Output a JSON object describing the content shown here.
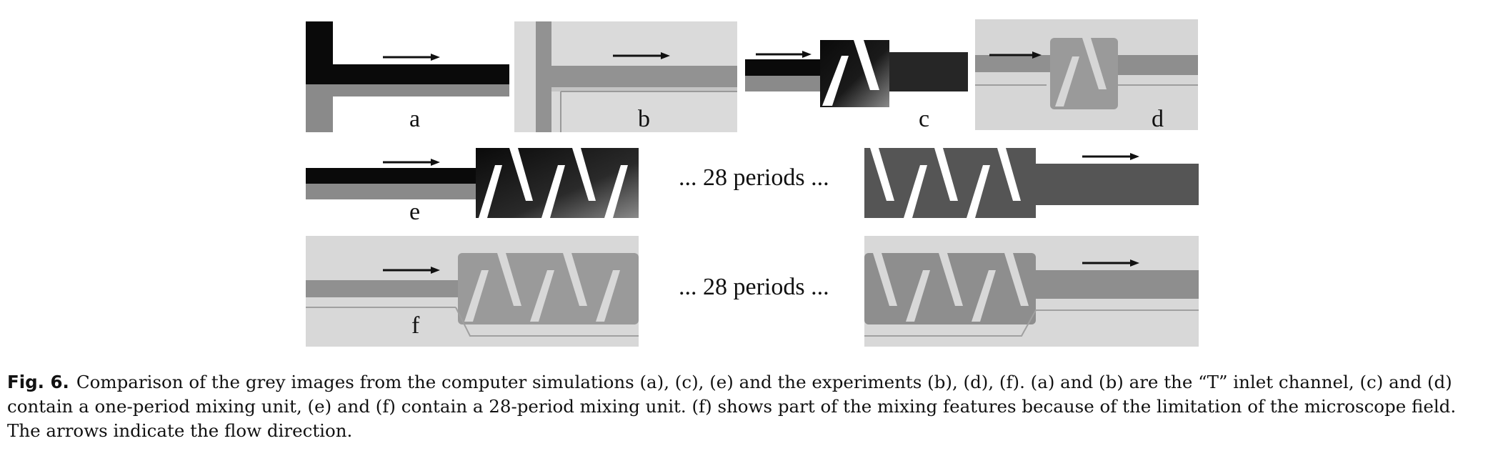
{
  "panels": {
    "a": {
      "label": "a"
    },
    "b": {
      "label": "b"
    },
    "c": {
      "label": "c"
    },
    "d": {
      "label": "d"
    },
    "e": {
      "label": "e"
    },
    "f": {
      "label": "f"
    }
  },
  "periods_text_row1": "... 28 periods ...",
  "periods_text_row2": "... 28 periods ...",
  "caption": {
    "label": "Fig. 6.",
    "text": "Comparison of the grey images from the computer simulations (a), (c), (e) and the experiments (b), (d), (f). (a) and (b) are the “T” inlet channel, (c) and (d) contain a one-period mixing unit, (e) and (f) contain a 28-period mixing unit. (f) shows part of the mixing features because of the limitation of the microscope field. The arrows indicate the flow direction."
  },
  "colors": {
    "black": "#0a0a0a",
    "sim_grey": "#8a8a8a",
    "exp_bg": "#d8d8d8",
    "exp_channel": "#8e8e8e"
  }
}
